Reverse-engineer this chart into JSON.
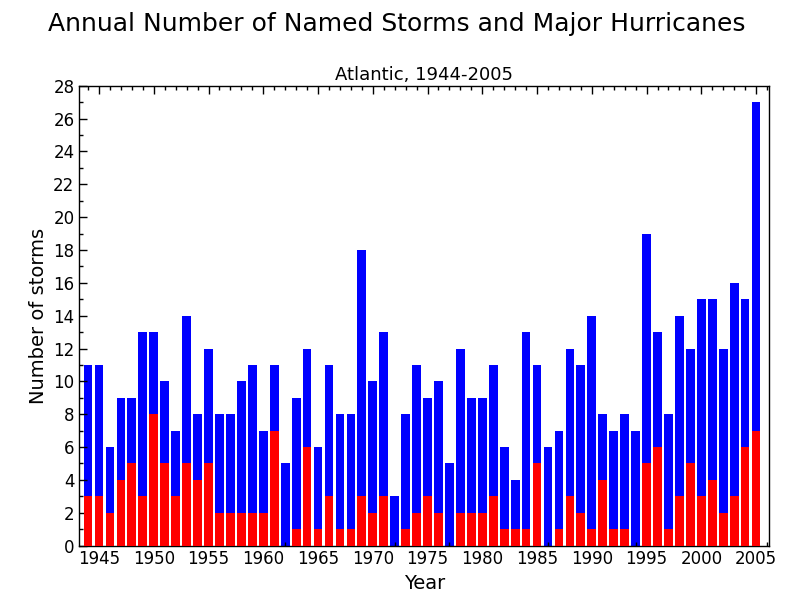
{
  "title": "Annual Number of Named Storms and Major Hurricanes",
  "subtitle": "Atlantic, 1944-2005",
  "xlabel": "Year",
  "ylabel": "Number of storms",
  "years": [
    1944,
    1945,
    1946,
    1947,
    1948,
    1949,
    1950,
    1951,
    1952,
    1953,
    1954,
    1955,
    1956,
    1957,
    1958,
    1959,
    1960,
    1961,
    1962,
    1963,
    1964,
    1965,
    1966,
    1967,
    1968,
    1969,
    1970,
    1971,
    1972,
    1973,
    1974,
    1975,
    1976,
    1977,
    1978,
    1979,
    1980,
    1981,
    1982,
    1983,
    1984,
    1985,
    1986,
    1987,
    1988,
    1989,
    1990,
    1991,
    1992,
    1993,
    1994,
    1995,
    1996,
    1997,
    1998,
    1999,
    2000,
    2001,
    2002,
    2003,
    2004,
    2005
  ],
  "named_storms": [
    11,
    11,
    6,
    9,
    9,
    13,
    13,
    10,
    7,
    14,
    8,
    12,
    8,
    8,
    10,
    11,
    7,
    11,
    5,
    9,
    12,
    6,
    11,
    8,
    8,
    18,
    10,
    13,
    3,
    8,
    11,
    9,
    10,
    5,
    12,
    9,
    9,
    11,
    6,
    4,
    13,
    11,
    6,
    7,
    12,
    11,
    14,
    8,
    7,
    8,
    7,
    19,
    13,
    8,
    14,
    12,
    15,
    15,
    12,
    16,
    15,
    27
  ],
  "major_hurricanes": [
    3,
    3,
    2,
    4,
    5,
    3,
    8,
    5,
    3,
    5,
    4,
    5,
    2,
    2,
    2,
    2,
    2,
    7,
    0,
    1,
    6,
    1,
    3,
    1,
    1,
    3,
    2,
    3,
    0,
    1,
    2,
    3,
    2,
    0,
    2,
    2,
    2,
    3,
    1,
    1,
    1,
    5,
    0,
    1,
    3,
    2,
    1,
    4,
    1,
    1,
    0,
    5,
    6,
    1,
    3,
    5,
    3,
    4,
    2,
    3,
    6,
    7
  ],
  "bar_color_blue": "#0000FF",
  "bar_color_red": "#FF0000",
  "ylim": [
    0,
    28
  ],
  "yticks": [
    0,
    2,
    4,
    6,
    8,
    10,
    12,
    14,
    16,
    18,
    20,
    22,
    24,
    26,
    28
  ],
  "xticks": [
    1945,
    1950,
    1955,
    1960,
    1965,
    1970,
    1975,
    1980,
    1985,
    1990,
    1995,
    2000,
    2005
  ],
  "title_fontsize": 18,
  "subtitle_fontsize": 13,
  "axis_label_fontsize": 14,
  "tick_fontsize": 12,
  "bar_width": 0.8,
  "xlim": [
    1943.2,
    2006.2
  ]
}
